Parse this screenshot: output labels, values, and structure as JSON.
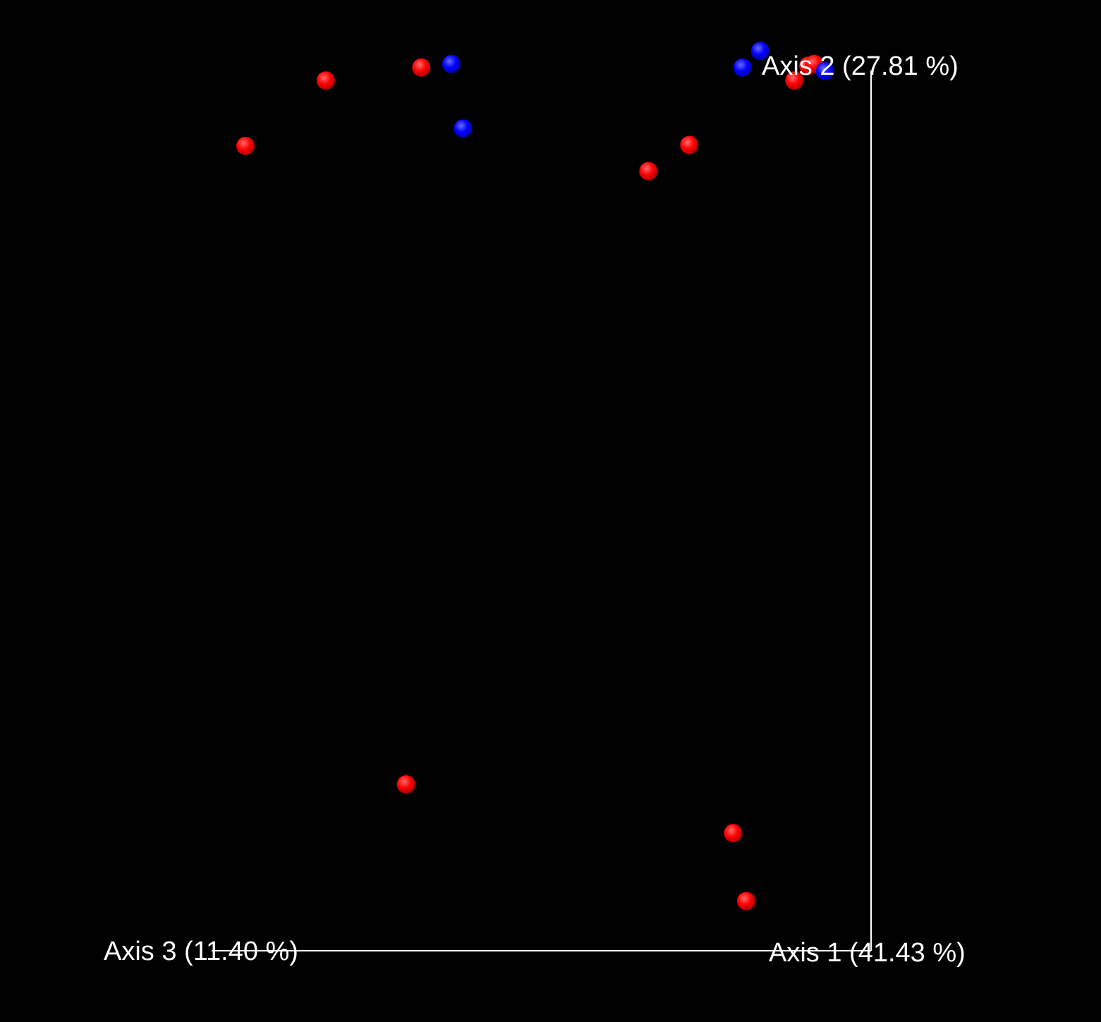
{
  "chart_data": {
    "type": "scatter",
    "view": "3d-pcoa",
    "background": "#000000",
    "axis_color": "#ffffff",
    "grid": false,
    "axes": {
      "axis1_label": "Axis 1 (41.43 %)",
      "axis2_label": "Axis 2 (27.81 %)",
      "axis3_label": "Axis 3 (11.40 %)"
    },
    "series": [
      {
        "color": "#ff0000",
        "points": [
          {
            "x": 0.143,
            "y": 0.924
          },
          {
            "x": 0.253,
            "y": 0.999
          },
          {
            "x": 0.384,
            "y": 1.014
          },
          {
            "x": 0.695,
            "y": 0.895
          },
          {
            "x": 0.751,
            "y": 0.925
          },
          {
            "x": 0.895,
            "y": 0.999
          },
          {
            "x": 0.914,
            "y": 1.016
          },
          {
            "x": 0.922,
            "y": 1.018
          },
          {
            "x": 0.363,
            "y": 0.191
          },
          {
            "x": 0.811,
            "y": 0.135
          },
          {
            "x": 0.829,
            "y": 0.057
          }
        ]
      },
      {
        "color": "#0000ff",
        "points": [
          {
            "x": 0.425,
            "y": 1.018
          },
          {
            "x": 0.441,
            "y": 0.944
          },
          {
            "x": 0.824,
            "y": 1.014
          },
          {
            "x": 0.848,
            "y": 1.033
          },
          {
            "x": 0.937,
            "y": 1.01
          }
        ]
      }
    ]
  }
}
